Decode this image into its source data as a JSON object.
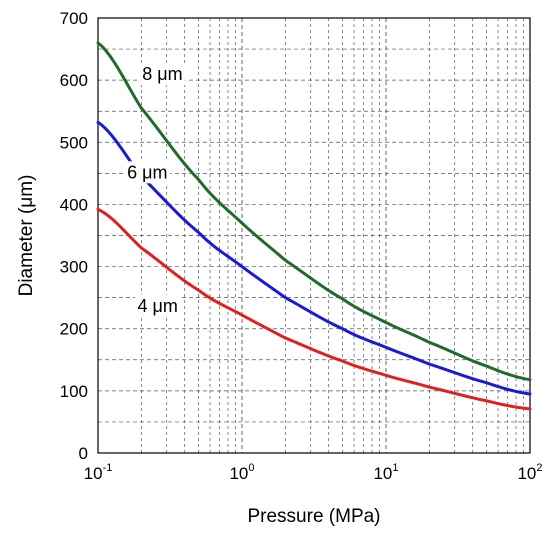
{
  "chart_data": {
    "type": "line",
    "title": "",
    "xlabel": "Pressure (MPa)",
    "ylabel": "Diameter (μm)",
    "xscale": "log",
    "xlim": [
      0.1,
      100
    ],
    "ylim": [
      0,
      700
    ],
    "grid": true,
    "x_ticks": [
      {
        "base": "10",
        "exp": "-1"
      },
      {
        "base": "10",
        "exp": "0"
      },
      {
        "base": "10",
        "exp": "1"
      },
      {
        "base": "10",
        "exp": "2"
      }
    ],
    "y_ticks": [
      "0",
      "100",
      "200",
      "300",
      "400",
      "500",
      "600",
      "700"
    ],
    "series": [
      {
        "name": "8 μm",
        "color": "#1e6b2a",
        "x": [
          0.1,
          0.2,
          0.5,
          1,
          2,
          5,
          10,
          20,
          50,
          100
        ],
        "values": [
          660,
          555,
          440,
          370,
          310,
          248,
          210,
          178,
          140,
          118
        ]
      },
      {
        "name": "6 μm",
        "color": "#1a1ad6",
        "x": [
          0.1,
          0.2,
          0.5,
          1,
          2,
          5,
          10,
          20,
          50,
          100
        ],
        "values": [
          532,
          445,
          355,
          300,
          250,
          200,
          170,
          143,
          113,
          95
        ]
      },
      {
        "name": "4 μm",
        "color": "#e02020",
        "x": [
          0.1,
          0.2,
          0.5,
          1,
          2,
          5,
          10,
          20,
          50,
          100
        ],
        "values": [
          392,
          330,
          262,
          222,
          185,
          148,
          125,
          106,
          84,
          71
        ]
      }
    ]
  }
}
